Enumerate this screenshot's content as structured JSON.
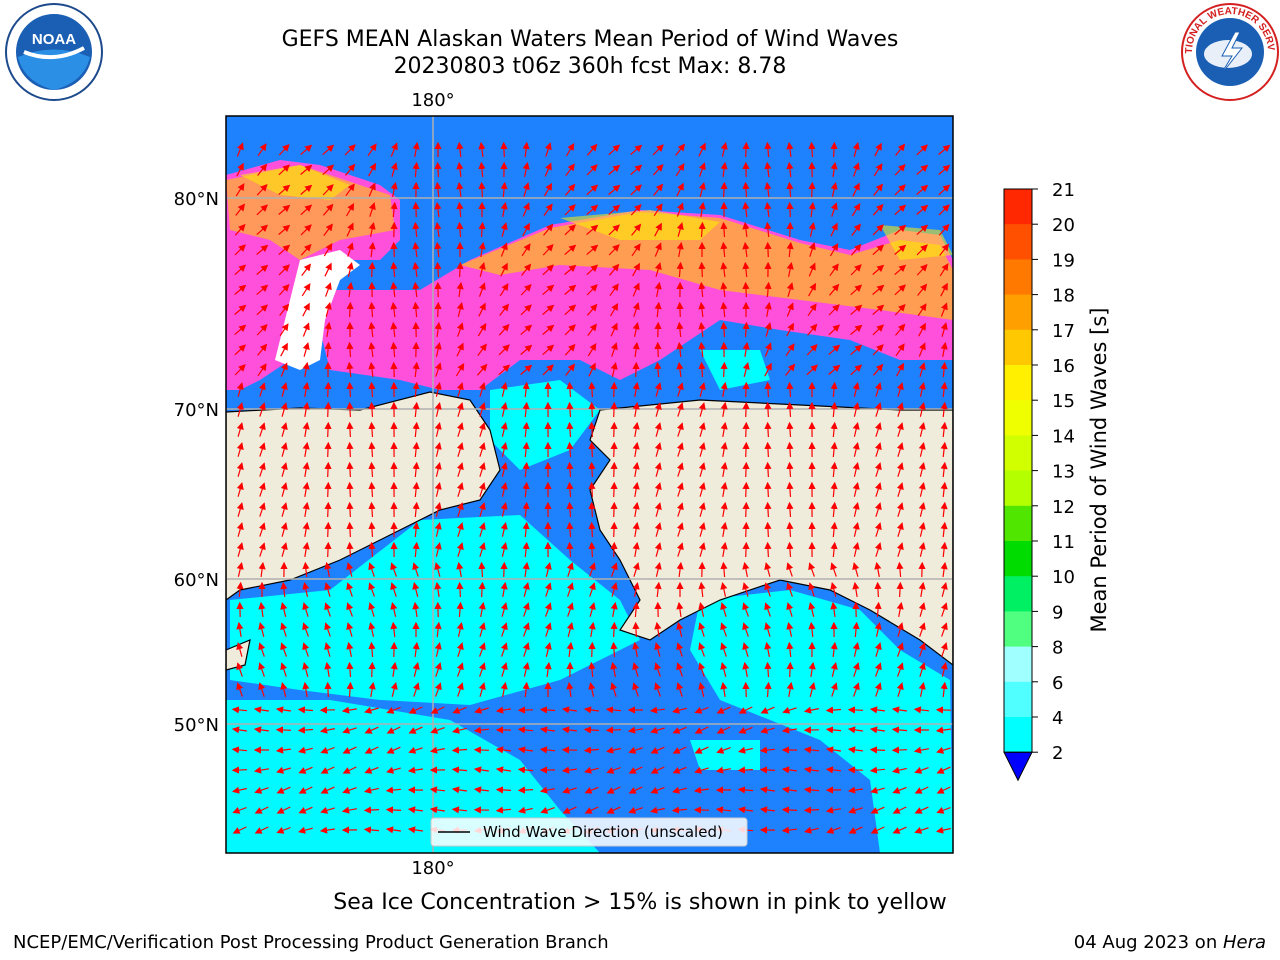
{
  "title": {
    "line1": "GEFS MEAN Alaskan Waters Mean Period of Wind Waves",
    "line2": "20230803 t06z 360h fcst   Max: 8.78"
  },
  "map": {
    "lon_top_label": "180°",
    "lon_bottom_label": "180°",
    "lat_labels": [
      "80°N",
      "70°N",
      "60°N",
      "50°N"
    ],
    "legend_label": "Wind Wave Direction (unscaled)",
    "colors": {
      "land": "#efecdc",
      "ocean_low": "#1e82ff",
      "ocean_mid": "#00ffff",
      "ice_pink": "#ff50dc",
      "ice_orange": "#ffb030",
      "ice_yellow": "#fff000",
      "arrow": "#ff0000",
      "grid": "#b0b0b0"
    }
  },
  "colorbar": {
    "label": "Mean Period of Wind Waves [s]",
    "ticks": [
      "21",
      "20",
      "19",
      "18",
      "17",
      "16",
      "15",
      "14",
      "13",
      "12",
      "11",
      "10",
      "9",
      "8",
      "6",
      "4",
      "2"
    ],
    "colors": [
      "#ff0000",
      "#ff2800",
      "#ff5000",
      "#ff7800",
      "#ffa000",
      "#ffc800",
      "#fff000",
      "#f0ff00",
      "#d2ff00",
      "#b4ff00",
      "#50e600",
      "#00dc00",
      "#00f064",
      "#50ff80",
      "#a0ffff",
      "#50ffff",
      "#00ffff",
      "#1e82ff",
      "#0000ff"
    ]
  },
  "caption": "Sea Ice Concentration > 15% is shown in pink to yellow",
  "footer": {
    "left": "NCEP/EMC/Verification Post Processing Product Generation Branch",
    "right_date": "04 Aug 2023 on ",
    "right_host": "Hera"
  },
  "logos": {
    "noaa_text": "NOAA",
    "nws_text": "NATIONAL WEATHER SERVICE"
  }
}
